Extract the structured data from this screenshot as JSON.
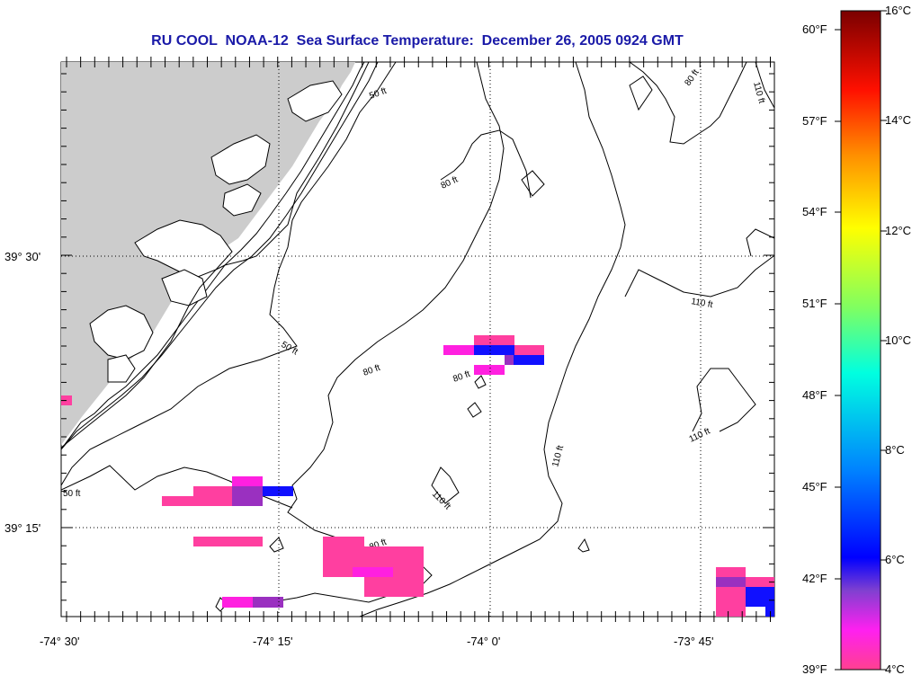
{
  "title": "RU COOL  NOAA-12  Sea Surface Temperature:  December 26, 2005 0924 GMT",
  "lat_ticks": [
    "39° 30'",
    "39° 15'"
  ],
  "lon_ticks": [
    "-74° 30'",
    "-74° 15'",
    "-74° 0'",
    "-73° 45'"
  ],
  "colorbar": {
    "fahrenheit": [
      "60°F",
      "57°F",
      "54°F",
      "51°F",
      "48°F",
      "45°F",
      "42°F",
      "39°F"
    ],
    "celsius": [
      "16°C",
      "14°C",
      "12°C",
      "10°C",
      "8°C",
      "6°C",
      "4°C"
    ]
  },
  "contour_labels": [
    "50 ft",
    "50 ft",
    "50 ft",
    "80 ft",
    "80 ft",
    "80 ft",
    "80 ft",
    "80 ft",
    "110 ft",
    "110 ft",
    "110 ft",
    "110 ft",
    "110 ft"
  ],
  "colors": {
    "title": "#1a1aa8",
    "land": "#cccccc",
    "pixel_cold_pink": "#ff3fa0",
    "pixel_magenta": "#ff20e0",
    "pixel_purple": "#9a30c0",
    "pixel_blue": "#1010ff"
  }
}
